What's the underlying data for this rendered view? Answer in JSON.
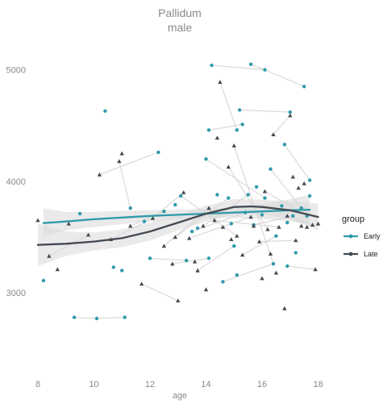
{
  "chart_data": {
    "type": "scatter",
    "title": "Pallidum",
    "subtitle": "male",
    "xlabel": "age",
    "ylabel": "",
    "xlim": [
      7.8,
      18.3
    ],
    "ylim": [
      2300,
      5250
    ],
    "xticks": [
      "8",
      "10",
      "12",
      "14",
      "16",
      "18"
    ],
    "yticks": [
      "3000",
      "4000",
      "5000"
    ],
    "grid": false,
    "legend": {
      "title": "group",
      "position": "right"
    },
    "colors": {
      "Early": "#2e9aaa",
      "Late": "#434a52",
      "connector": "#d6d6d6",
      "band": "#d9d9d9"
    },
    "series": [
      {
        "name": "Early",
        "marker": "circle",
        "points": [
          [
            8.2,
            3110
          ],
          [
            9.3,
            2780
          ],
          [
            9.5,
            3710
          ],
          [
            10.1,
            2770
          ],
          [
            10.4,
            4630
          ],
          [
            10.7,
            3230
          ],
          [
            11.0,
            3200
          ],
          [
            11.1,
            2780
          ],
          [
            11.3,
            3760
          ],
          [
            11.8,
            3640
          ],
          [
            12.0,
            3310
          ],
          [
            12.3,
            4260
          ],
          [
            12.5,
            3730
          ],
          [
            12.9,
            3790
          ],
          [
            13.1,
            3870
          ],
          [
            13.3,
            3290
          ],
          [
            13.5,
            3550
          ],
          [
            13.7,
            3580
          ],
          [
            14.0,
            4200
          ],
          [
            14.1,
            4460
          ],
          [
            14.1,
            3310
          ],
          [
            14.2,
            5040
          ],
          [
            14.4,
            3880
          ],
          [
            14.6,
            3100
          ],
          [
            14.8,
            3850
          ],
          [
            14.9,
            3620
          ],
          [
            15.0,
            3420
          ],
          [
            15.1,
            4460
          ],
          [
            15.1,
            3160
          ],
          [
            15.2,
            4640
          ],
          [
            15.3,
            4510
          ],
          [
            15.4,
            3720
          ],
          [
            15.5,
            3880
          ],
          [
            15.6,
            5050
          ],
          [
            15.8,
            3950
          ],
          [
            16.0,
            3700
          ],
          [
            16.1,
            3850
          ],
          [
            16.1,
            5000
          ],
          [
            16.3,
            4110
          ],
          [
            16.4,
            3260
          ],
          [
            16.5,
            3510
          ],
          [
            16.7,
            3780
          ],
          [
            16.8,
            4330
          ],
          [
            16.9,
            3240
          ],
          [
            17.0,
            4620
          ],
          [
            17.1,
            3690
          ],
          [
            17.2,
            3360
          ],
          [
            17.4,
            3760
          ],
          [
            17.5,
            4850
          ],
          [
            17.6,
            3690
          ],
          [
            17.7,
            3870
          ],
          [
            17.7,
            4010
          ],
          [
            16.9,
            3630
          ],
          [
            15.7,
            3610
          ]
        ]
      },
      {
        "name": "Late",
        "marker": "triangle",
        "points": [
          [
            8.0,
            3650
          ],
          [
            8.4,
            3330
          ],
          [
            8.7,
            3210
          ],
          [
            9.1,
            3620
          ],
          [
            9.8,
            3520
          ],
          [
            10.2,
            4060
          ],
          [
            10.6,
            3480
          ],
          [
            10.9,
            4180
          ],
          [
            11.0,
            4250
          ],
          [
            11.3,
            3600
          ],
          [
            11.7,
            3080
          ],
          [
            12.1,
            3670
          ],
          [
            12.5,
            3420
          ],
          [
            12.8,
            3260
          ],
          [
            13.0,
            2930
          ],
          [
            13.2,
            3900
          ],
          [
            13.4,
            3490
          ],
          [
            13.6,
            3280
          ],
          [
            13.7,
            3200
          ],
          [
            13.9,
            3600
          ],
          [
            14.0,
            3030
          ],
          [
            14.1,
            3760
          ],
          [
            14.3,
            3650
          ],
          [
            14.5,
            4890
          ],
          [
            14.6,
            3590
          ],
          [
            14.8,
            4130
          ],
          [
            14.9,
            3480
          ],
          [
            15.0,
            4320
          ],
          [
            15.1,
            3510
          ],
          [
            15.3,
            3340
          ],
          [
            15.6,
            3680
          ],
          [
            15.7,
            3600
          ],
          [
            15.9,
            3460
          ],
          [
            16.1,
            3910
          ],
          [
            16.2,
            3570
          ],
          [
            16.3,
            3350
          ],
          [
            16.4,
            4420
          ],
          [
            16.5,
            3180
          ],
          [
            16.6,
            3590
          ],
          [
            16.8,
            2860
          ],
          [
            16.9,
            3690
          ],
          [
            17.0,
            4590
          ],
          [
            17.1,
            4040
          ],
          [
            17.2,
            3470
          ],
          [
            17.3,
            3940
          ],
          [
            17.4,
            3600
          ],
          [
            17.6,
            3590
          ],
          [
            17.8,
            3610
          ],
          [
            17.9,
            3210
          ],
          [
            18.0,
            3620
          ],
          [
            17.5,
            3980
          ],
          [
            16.0,
            3130
          ],
          [
            14.4,
            4390
          ],
          [
            12.9,
            3500
          ]
        ]
      }
    ],
    "connectors": [
      [
        [
          14.2,
          5040
        ],
        [
          16.1,
          5000
        ]
      ],
      [
        [
          15.6,
          5050
        ],
        [
          16.1,
          5000
        ]
      ],
      [
        [
          16.1,
          5000
        ],
        [
          17.5,
          4850
        ]
      ],
      [
        [
          15.2,
          4640
        ],
        [
          17.0,
          4620
        ]
      ],
      [
        [
          14.5,
          4890
        ],
        [
          15.1,
          4460
        ]
      ],
      [
        [
          10.2,
          4060
        ],
        [
          12.3,
          4260
        ]
      ],
      [
        [
          10.9,
          4180
        ],
        [
          11.3,
          3760
        ]
      ],
      [
        [
          9.3,
          2780
        ],
        [
          10.1,
          2770
        ]
      ],
      [
        [
          10.1,
          2770
        ],
        [
          11.1,
          2780
        ]
      ],
      [
        [
          12.1,
          3670
        ],
        [
          13.2,
          3900
        ]
      ],
      [
        [
          13.7,
          3200
        ],
        [
          15.0,
          3420
        ]
      ],
      [
        [
          12.5,
          3420
        ],
        [
          14.1,
          3760
        ]
      ],
      [
        [
          14.6,
          3100
        ],
        [
          16.4,
          3260
        ]
      ],
      [
        [
          15.3,
          3340
        ],
        [
          16.5,
          3510
        ]
      ],
      [
        [
          13.1,
          3870
        ],
        [
          15.1,
          3510
        ]
      ],
      [
        [
          14.0,
          4200
        ],
        [
          16.1,
          3850
        ]
      ],
      [
        [
          14.1,
          4460
        ],
        [
          15.3,
          4510
        ]
      ],
      [
        [
          16.3,
          4110
        ],
        [
          17.4,
          3760
        ]
      ],
      [
        [
          16.4,
          4420
        ],
        [
          17.0,
          4590
        ]
      ],
      [
        [
          12.8,
          3260
        ],
        [
          14.1,
          3310
        ]
      ],
      [
        [
          12.0,
          3310
        ],
        [
          13.3,
          3290
        ]
      ],
      [
        [
          11.7,
          3080
        ],
        [
          13.0,
          2930
        ]
      ],
      [
        [
          15.9,
          3460
        ],
        [
          17.2,
          3470
        ]
      ],
      [
        [
          16.8,
          4330
        ],
        [
          17.7,
          4010
        ]
      ],
      [
        [
          13.4,
          3490
        ],
        [
          15.6,
          3680
        ]
      ],
      [
        [
          8.4,
          3330
        ],
        [
          9.8,
          3520
        ]
      ],
      [
        [
          11.3,
          3600
        ],
        [
          12.5,
          3730
        ]
      ],
      [
        [
          14.8,
          4130
        ],
        [
          16.2,
          3570
        ]
      ],
      [
        [
          15.0,
          4320
        ],
        [
          16.4,
          3260
        ]
      ],
      [
        [
          13.9,
          3600
        ],
        [
          15.5,
          3880
        ]
      ],
      [
        [
          16.9,
          3240
        ],
        [
          17.9,
          3210
        ]
      ],
      [
        [
          14.3,
          3650
        ],
        [
          16.6,
          3590
        ]
      ],
      [
        [
          16.9,
          3690
        ],
        [
          17.8,
          3610
        ]
      ],
      [
        [
          12.9,
          3500
        ],
        [
          14.8,
          3850
        ]
      ],
      [
        [
          15.7,
          3610
        ],
        [
          17.1,
          3690
        ]
      ],
      [
        [
          13.5,
          3550
        ],
        [
          15.4,
          3720
        ]
      ],
      [
        [
          10.6,
          3480
        ],
        [
          12.1,
          3670
        ]
      ],
      [
        [
          16.1,
          3910
        ],
        [
          17.6,
          3690
        ]
      ]
    ],
    "smooth_lines": [
      {
        "name": "Early",
        "x": [
          8.2,
          9,
          10,
          11,
          12,
          13,
          14,
          15,
          16,
          17,
          17.7
        ],
        "y": [
          3625,
          3640,
          3660,
          3675,
          3690,
          3700,
          3710,
          3720,
          3730,
          3740,
          3745
        ],
        "lower": [
          3500,
          3560,
          3590,
          3615,
          3640,
          3660,
          3670,
          3670,
          3665,
          3640,
          3610
        ],
        "upper": [
          3760,
          3725,
          3725,
          3735,
          3740,
          3745,
          3750,
          3770,
          3800,
          3840,
          3880
        ]
      },
      {
        "name": "Late",
        "x": [
          8.0,
          9,
          10,
          11,
          12,
          13,
          14,
          15,
          15.6,
          16,
          17,
          18
        ],
        "y": [
          3430,
          3440,
          3460,
          3490,
          3550,
          3630,
          3710,
          3770,
          3775,
          3770,
          3740,
          3680
        ],
        "lower": [
          3240,
          3330,
          3380,
          3410,
          3470,
          3560,
          3640,
          3700,
          3710,
          3705,
          3660,
          3560
        ],
        "upper": [
          3620,
          3550,
          3540,
          3570,
          3630,
          3700,
          3780,
          3840,
          3840,
          3835,
          3820,
          3800
        ]
      }
    ]
  }
}
